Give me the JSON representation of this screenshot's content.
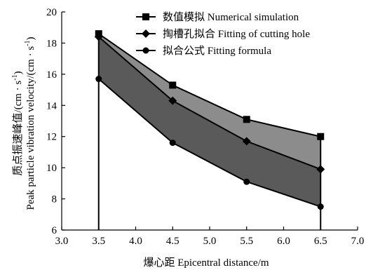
{
  "chart_data": {
    "type": "area",
    "title": "",
    "xlabel": "爆心距 Epicentral distance/m",
    "ylabel_line1": "质点振速峰值/(cm · s",
    "ylabel_line1_sup": "-1",
    "ylabel_line1_end": ")",
    "ylabel_line2": "Peak particle vibration velocity/(cm · s",
    "ylabel_line2_sup": "-1",
    "ylabel_line2_end": ")",
    "xlim": [
      3.0,
      7.0
    ],
    "ylim": [
      6,
      20
    ],
    "xticks": [
      "3.0",
      "3.5",
      "4.0",
      "4.5",
      "5.0",
      "5.5",
      "6.0",
      "6.5",
      "7.0"
    ],
    "yticks": [
      "6",
      "8",
      "10",
      "12",
      "14",
      "16",
      "18",
      "20"
    ],
    "x": [
      3.5,
      4.5,
      5.5,
      6.5
    ],
    "series": [
      {
        "name": "数值模拟 Numerical simulation",
        "marker": "square",
        "values": [
          18.6,
          15.3,
          13.1,
          12.0
        ]
      },
      {
        "name": "掏槽孔拟合 Fitting of cutting hole",
        "marker": "diamond",
        "values": [
          18.4,
          14.3,
          11.7,
          9.9
        ]
      },
      {
        "name": "拟合公式 Fitting formula",
        "marker": "circle",
        "values": [
          15.7,
          11.6,
          9.1,
          7.5
        ]
      }
    ],
    "fill_colors": {
      "upper_band": "#8c8c8c",
      "lower_band": "#5a5a5a"
    },
    "line_color": "#000000",
    "grid": false,
    "legend_position": "top-right"
  }
}
